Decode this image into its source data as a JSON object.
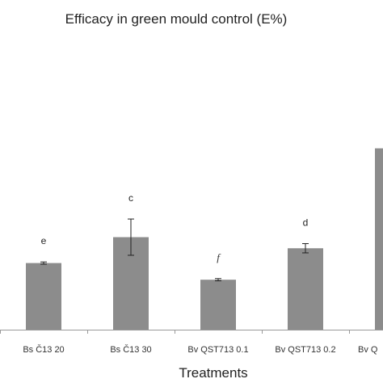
{
  "chart_data": {
    "type": "bar",
    "title": "Efficacy in green mould control (E%)",
    "xlabel": "Treatments",
    "ylabel": "",
    "categories": [
      "Bs Č13 20",
      "Bs Č13 30",
      "Bv QST713 0.1",
      "Bv QST713 0.2",
      "Bv Q"
    ],
    "values": [
      36,
      50,
      27,
      44,
      98
    ],
    "errors": [
      0.6,
      9.8,
      0.6,
      2.5,
      0
    ],
    "significance_letters": [
      "e",
      "c",
      "f",
      "d",
      ""
    ],
    "ylim": [
      0,
      100
    ],
    "bar_color": "#8c8c8c",
    "grid": false
  }
}
